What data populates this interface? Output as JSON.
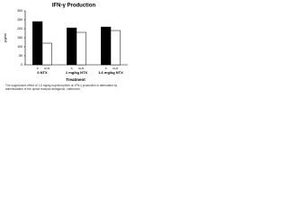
{
  "chart_data": {
    "type": "grouped-bar",
    "title": "IFN-γ Production",
    "y_label": "pg/ml",
    "x_label": "Treatment",
    "caption": "The suppressive effect of 1.6 mg/kg buprenorphine on IFN-γ production is attenuated by administration of the opioid receptor antagonist, naltrexone.",
    "categories": [
      "0 NTX",
      "1 mg/kg NTX",
      "1.6 mg/kg NTX"
    ],
    "series": [
      {
        "name": "S",
        "color": "#000000",
        "values": [
          240,
          205,
          210
        ]
      },
      {
        "name": "GUF",
        "color": "#ffffff",
        "values": [
          120,
          180,
          190
        ]
      }
    ],
    "ylim": [
      0,
      300
    ],
    "yticks": [
      0,
      50,
      100,
      150,
      200,
      250,
      300
    ]
  }
}
